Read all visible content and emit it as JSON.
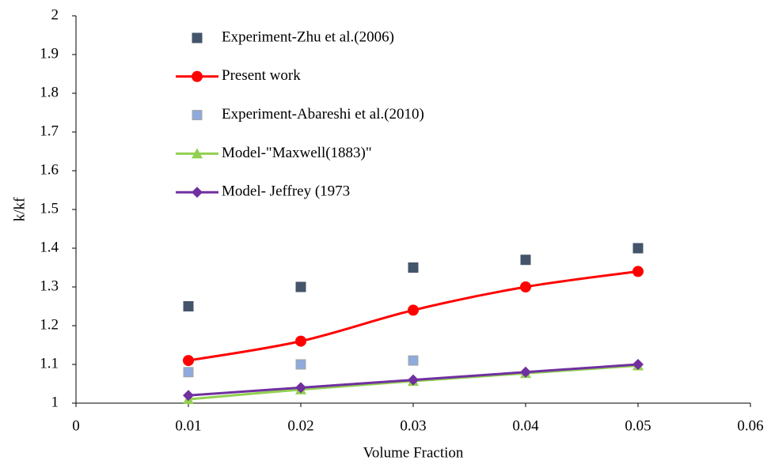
{
  "chart_data": {
    "type": "line",
    "x_label": "Volume Fraction",
    "y_label": "k/kf",
    "xlim": [
      0,
      0.06
    ],
    "xticks": [
      0,
      0.01,
      0.02,
      0.03,
      0.04,
      0.05,
      0.06
    ],
    "ylim": [
      1,
      2
    ],
    "yticks": [
      1,
      1.1,
      1.2,
      1.3,
      1.4,
      1.5,
      1.6,
      1.7,
      1.8,
      1.9,
      2
    ],
    "legend": "top-left",
    "series": [
      {
        "name": "Experiment-Zhu et al.(2006)",
        "color": "#44546a",
        "marker": "square",
        "line": false,
        "x": [
          0.01,
          0.02,
          0.03,
          0.04,
          0.05
        ],
        "values": [
          1.25,
          1.3,
          1.35,
          1.37,
          1.4
        ]
      },
      {
        "name": "Present work",
        "color": "#ff0000",
        "marker": "circle",
        "line": true,
        "x": [
          0.01,
          0.02,
          0.03,
          0.04,
          0.05
        ],
        "values": [
          1.11,
          1.16,
          1.24,
          1.3,
          1.34
        ]
      },
      {
        "name": "Experiment-Abareshi et al.(2010)",
        "color": "#8faadc",
        "marker": "square",
        "line": false,
        "x": [
          0.01,
          0.02,
          0.03
        ],
        "values": [
          1.08,
          1.1,
          1.11
        ]
      },
      {
        "name": "Model-\"Maxwell(1883)\"",
        "color": "#92d050",
        "marker": "triangle",
        "line": true,
        "x": [
          0.01,
          0.02,
          0.03,
          0.04,
          0.05
        ],
        "values": [
          1.01,
          1.035,
          1.057,
          1.077,
          1.097
        ]
      },
      {
        "name": "Model- Jeffrey (1973",
        "color": "#7030a0",
        "marker": "diamond",
        "line": true,
        "x": [
          0.01,
          0.02,
          0.03,
          0.04,
          0.05
        ],
        "values": [
          1.02,
          1.04,
          1.06,
          1.08,
          1.1
        ]
      }
    ]
  }
}
